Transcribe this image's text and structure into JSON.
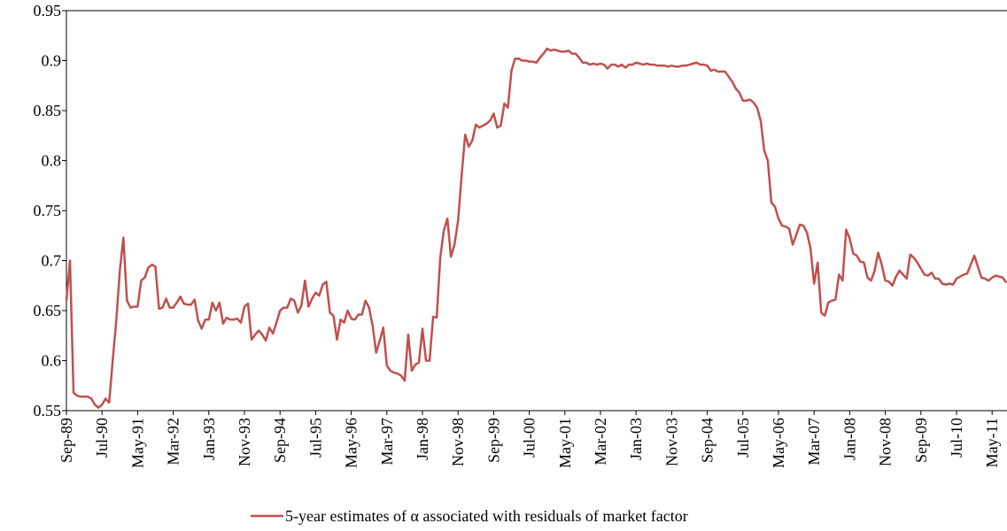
{
  "chart_data": {
    "type": "line",
    "categories": [
      "Sep-89",
      null,
      null,
      null,
      null,
      null,
      null,
      null,
      null,
      null,
      "Jul-90",
      null,
      null,
      null,
      null,
      null,
      null,
      null,
      null,
      null,
      "May-91",
      null,
      null,
      null,
      null,
      null,
      null,
      null,
      null,
      null,
      "Mar-92",
      null,
      null,
      null,
      null,
      null,
      null,
      null,
      null,
      null,
      "Jan-93",
      null,
      null,
      null,
      null,
      null,
      null,
      null,
      null,
      null,
      "Nov-93",
      null,
      null,
      null,
      null,
      null,
      null,
      null,
      null,
      null,
      "Sep-94",
      null,
      null,
      null,
      null,
      null,
      null,
      null,
      null,
      null,
      "Jul-95",
      null,
      null,
      null,
      null,
      null,
      null,
      null,
      null,
      null,
      "May-96",
      null,
      null,
      null,
      null,
      null,
      null,
      null,
      null,
      null,
      "Mar-97",
      null,
      null,
      null,
      null,
      null,
      null,
      null,
      null,
      null,
      "Jan-98",
      null,
      null,
      null,
      null,
      null,
      null,
      null,
      null,
      null,
      "Nov-98",
      null,
      null,
      null,
      null,
      null,
      null,
      null,
      null,
      null,
      "Sep-99",
      null,
      null,
      null,
      null,
      null,
      null,
      null,
      null,
      null,
      "Jul-00",
      null,
      null,
      null,
      null,
      null,
      null,
      null,
      null,
      null,
      "May-01",
      null,
      null,
      null,
      null,
      null,
      null,
      null,
      null,
      null,
      "Mar-02",
      null,
      null,
      null,
      null,
      null,
      null,
      null,
      null,
      null,
      "Jan-03",
      null,
      null,
      null,
      null,
      null,
      null,
      null,
      null,
      null,
      "Nov-03",
      null,
      null,
      null,
      null,
      null,
      null,
      null,
      null,
      null,
      "Sep-04",
      null,
      null,
      null,
      null,
      null,
      null,
      null,
      null,
      null,
      "Jul-05",
      null,
      null,
      null,
      null,
      null,
      null,
      null,
      null,
      null,
      "May-06",
      null,
      null,
      null,
      null,
      null,
      null,
      null,
      null,
      null,
      "Mar-07",
      null,
      null,
      null,
      null,
      null,
      null,
      null,
      null,
      null,
      "Jan-08",
      null,
      null,
      null,
      null,
      null,
      null,
      null,
      null,
      null,
      "Nov-08",
      null,
      null,
      null,
      null,
      null,
      null,
      null,
      null,
      null,
      "Sep-09",
      null,
      null,
      null,
      null,
      null,
      null,
      null,
      null,
      null,
      "Jul-10",
      null,
      null,
      null,
      null,
      null,
      null,
      null,
      null,
      null,
      "May-11",
      null,
      null,
      null,
      null
    ],
    "series": [
      {
        "name": "5-year estimates of α associated with residuals of market factor",
        "color": "#c0504d",
        "values": [
          0.66,
          0.7,
          0.568,
          0.565,
          0.564,
          0.564,
          0.564,
          0.562,
          0.556,
          0.553,
          0.556,
          0.562,
          0.558,
          0.6,
          0.64,
          0.69,
          0.723,
          0.66,
          0.653,
          0.654,
          0.654,
          0.68,
          0.683,
          0.693,
          0.696,
          0.694,
          0.652,
          0.653,
          0.662,
          0.653,
          0.653,
          0.658,
          0.664,
          0.657,
          0.656,
          0.656,
          0.661,
          0.64,
          0.632,
          0.641,
          0.641,
          0.658,
          0.65,
          0.658,
          0.637,
          0.643,
          0.641,
          0.641,
          0.642,
          0.638,
          0.654,
          0.657,
          0.621,
          0.626,
          0.63,
          0.626,
          0.62,
          0.633,
          0.627,
          0.638,
          0.65,
          0.653,
          0.653,
          0.662,
          0.66,
          0.648,
          0.655,
          0.68,
          0.654,
          0.662,
          0.668,
          0.665,
          0.676,
          0.679,
          0.648,
          0.645,
          0.621,
          0.641,
          0.638,
          0.65,
          0.642,
          0.641,
          0.646,
          0.646,
          0.66,
          0.653,
          0.635,
          0.608,
          0.62,
          0.633,
          0.595,
          0.59,
          0.588,
          0.587,
          0.585,
          0.58,
          0.626,
          0.59,
          0.596,
          0.598,
          0.632,
          0.6,
          0.6,
          0.644,
          0.643,
          0.703,
          0.73,
          0.742,
          0.704,
          0.716,
          0.74,
          0.785,
          0.826,
          0.814,
          0.82,
          0.836,
          0.833,
          0.835,
          0.837,
          0.84,
          0.847,
          0.833,
          0.835,
          0.857,
          0.853,
          0.89,
          0.902,
          0.902,
          0.9,
          0.9,
          0.899,
          0.899,
          0.898,
          0.903,
          0.907,
          0.912,
          0.91,
          0.911,
          0.91,
          0.909,
          0.909,
          0.91,
          0.907,
          0.907,
          0.903,
          0.898,
          0.898,
          0.896,
          0.897,
          0.896,
          0.897,
          0.896,
          0.892,
          0.896,
          0.896,
          0.894,
          0.896,
          0.893,
          0.896,
          0.896,
          0.898,
          0.897,
          0.896,
          0.897,
          0.896,
          0.896,
          0.895,
          0.895,
          0.895,
          0.894,
          0.895,
          0.894,
          0.894,
          0.895,
          0.895,
          0.896,
          0.897,
          0.898,
          0.896,
          0.896,
          0.895,
          0.89,
          0.891,
          0.889,
          0.889,
          0.889,
          0.884,
          0.879,
          0.872,
          0.868,
          0.86,
          0.86,
          0.861,
          0.858,
          0.853,
          0.84,
          0.81,
          0.8,
          0.758,
          0.754,
          0.742,
          0.735,
          0.734,
          0.732,
          0.716,
          0.726,
          0.736,
          0.735,
          0.728,
          0.712,
          0.677,
          0.698,
          0.648,
          0.645,
          0.658,
          0.66,
          0.661,
          0.686,
          0.68,
          0.731,
          0.722,
          0.707,
          0.705,
          0.699,
          0.698,
          0.683,
          0.68,
          0.69,
          0.708,
          0.696,
          0.68,
          0.679,
          0.675,
          0.684,
          0.69,
          0.686,
          0.682,
          0.706,
          0.703,
          0.698,
          0.692,
          0.686,
          0.685,
          0.688,
          0.682,
          0.682,
          0.677,
          0.676,
          0.677,
          0.676,
          0.682,
          0.684,
          0.686,
          0.687,
          0.696,
          0.705,
          0.694,
          0.683,
          0.682,
          0.68,
          0.683,
          0.685,
          0.684,
          0.683,
          0.678
        ]
      }
    ],
    "ylim": [
      0.55,
      0.95
    ],
    "yticks": [
      0.55,
      0.6,
      0.65,
      0.7,
      0.75,
      0.8,
      0.85,
      0.9,
      0.95
    ],
    "grid": false,
    "legend": "bottom"
  }
}
